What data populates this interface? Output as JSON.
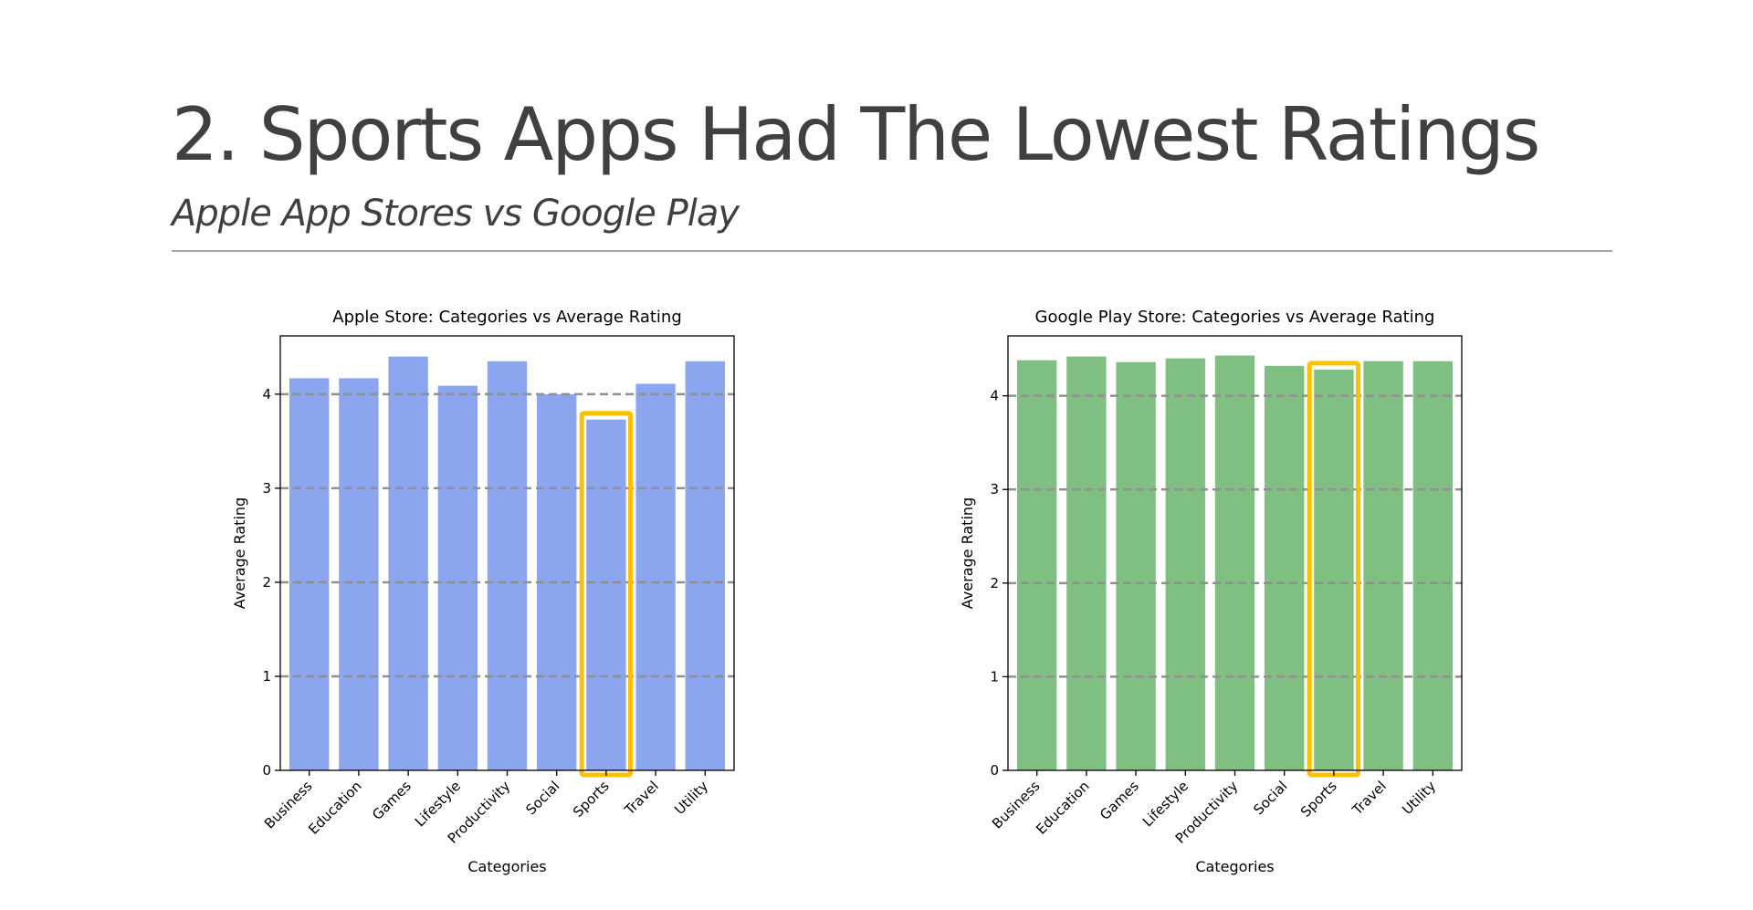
{
  "slide": {
    "title": "2. Sports Apps Had The Lowest Ratings",
    "subtitle": "Apple App Stores vs Google Play"
  },
  "chart_data": [
    {
      "type": "bar",
      "title": "Apple Store: Categories vs Average Rating",
      "xlabel": "Categories",
      "ylabel": "Average Rating",
      "categories": [
        "Business",
        "Education",
        "Games",
        "Lifestyle",
        "Productivity",
        "Social",
        "Sports",
        "Travel",
        "Utility"
      ],
      "values": [
        4.17,
        4.17,
        4.4,
        4.09,
        4.35,
        4.0,
        3.73,
        4.11,
        4.35
      ],
      "ylim": [
        0,
        4.62
      ],
      "yticks": [
        "0",
        "1",
        "2",
        "3",
        "4"
      ],
      "grid": "horizontal dashed",
      "bar_color": "#8ba5ee",
      "highlight": {
        "category": "Sports",
        "color": "#ffc000"
      }
    },
    {
      "type": "bar",
      "title": "Google Play Store: Categories vs Average Rating",
      "xlabel": "Categories",
      "ylabel": "Average Rating",
      "categories": [
        "Business",
        "Education",
        "Games",
        "Lifestyle",
        "Productivity",
        "Social",
        "Sports",
        "Travel",
        "Utility"
      ],
      "values": [
        4.38,
        4.42,
        4.36,
        4.4,
        4.43,
        4.32,
        4.28,
        4.37,
        4.37
      ],
      "ylim": [
        0,
        4.64
      ],
      "yticks": [
        "0",
        "1",
        "2",
        "3",
        "4"
      ],
      "grid": "horizontal dashed",
      "bar_color": "#80bf82",
      "highlight": {
        "category": "Sports",
        "color": "#ffc000"
      }
    }
  ]
}
